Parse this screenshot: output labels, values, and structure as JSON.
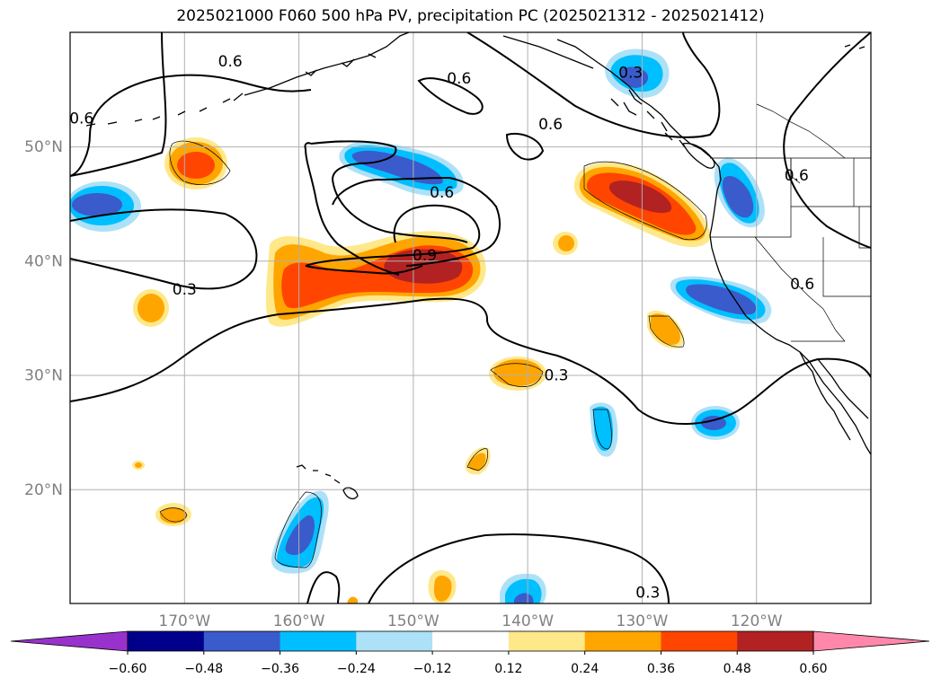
{
  "title": "2025021000 F060 500 hPa PV, precipitation PC (2025021312 - 2025021412)",
  "chart_data": {
    "type": "heatmap",
    "title": "2025021000 F060 500 hPa PV, precipitation PC (2025021312 - 2025021412)",
    "projection": "PlateCarree",
    "lon_range": [
      -180,
      -110
    ],
    "lat_range": [
      10,
      60
    ],
    "grid": true,
    "x_ticks": [
      -170,
      -160,
      -150,
      -140,
      -130,
      -120
    ],
    "x_tick_labels": [
      "170°W",
      "160°W",
      "150°W",
      "140°W",
      "130°W",
      "120°W"
    ],
    "y_ticks": [
      20,
      30,
      40,
      50
    ],
    "y_tick_labels": [
      "20°N",
      "30°N",
      "40°N",
      "50°N"
    ],
    "colorbar": {
      "levels": [
        -0.6,
        -0.48,
        -0.36,
        -0.24,
        -0.12,
        0.12,
        0.24,
        0.36,
        0.48,
        0.6
      ],
      "labels": [
        "−0.60",
        "−0.48",
        "−0.36",
        "−0.24",
        "−0.12",
        "0.12",
        "0.24",
        "0.36",
        "0.48",
        "0.60"
      ],
      "colors": [
        "#9932CC",
        "#00008B",
        "#3A5BCB",
        "#00BFFF",
        "#ADE1F8",
        "#FFFFFF",
        "#FFE88A",
        "#FFA500",
        "#FF4500",
        "#B22222",
        "#FF88AA"
      ],
      "extend": "both"
    },
    "contour_levels": [
      0.3,
      0.6,
      0.9
    ],
    "contour_labels": [
      {
        "text": "0.6",
        "lon": -179,
        "lat": 52.5
      },
      {
        "text": "0.6",
        "lon": -166,
        "lat": 57.5
      },
      {
        "text": "0.6",
        "lon": -146,
        "lat": 56
      },
      {
        "text": "0.3",
        "lon": -131,
        "lat": 56.5
      },
      {
        "text": "0.6",
        "lon": -138,
        "lat": 52
      },
      {
        "text": "0.6",
        "lon": -147.5,
        "lat": 46
      },
      {
        "text": "0.9",
        "lon": -149,
        "lat": 40.5
      },
      {
        "text": "0.3",
        "lon": -170,
        "lat": 37.5
      },
      {
        "text": "0.3",
        "lon": -137.5,
        "lat": 30
      },
      {
        "text": "0.3",
        "lon": -129.5,
        "lat": 11
      },
      {
        "text": "0.6",
        "lon": -116.5,
        "lat": 47.5
      },
      {
        "text": "0.6",
        "lon": -116,
        "lat": 38
      }
    ],
    "precip_areas": [
      {
        "lon": -174,
        "lat": 44.5,
        "level": -0.36
      },
      {
        "lon": -169,
        "lat": 48.6,
        "level": 0.36
      },
      {
        "lon": -151.5,
        "lat": 48.2,
        "level": -0.36
      },
      {
        "lon": -155,
        "lat": 38.5,
        "level": 0.36
      },
      {
        "lon": -149,
        "lat": 39.5,
        "level": 0.48
      },
      {
        "lon": -129.5,
        "lat": 45.3,
        "level": 0.48
      },
      {
        "lon": -122,
        "lat": 45,
        "level": -0.36
      },
      {
        "lon": -129,
        "lat": 56.5,
        "level": -0.36
      },
      {
        "lon": -122.5,
        "lat": 37,
        "level": -0.36
      },
      {
        "lon": -170.5,
        "lat": 35.8,
        "level": 0.24
      },
      {
        "lon": -140.5,
        "lat": 30.2,
        "level": 0.24
      },
      {
        "lon": -140,
        "lat": 41.7,
        "level": 0.24
      },
      {
        "lon": -128.5,
        "lat": 34.6,
        "level": 0.24
      },
      {
        "lon": -133,
        "lat": 25.5,
        "level": -0.24
      },
      {
        "lon": -123.8,
        "lat": 26,
        "level": -0.36
      },
      {
        "lon": -158,
        "lat": 16.5,
        "level": -0.36
      },
      {
        "lon": -143.5,
        "lat": 22.5,
        "level": 0.24
      },
      {
        "lon": -169,
        "lat": 17.8,
        "level": 0.24
      },
      {
        "lon": -174,
        "lat": 22,
        "level": 0.24
      },
      {
        "lon": -147,
        "lat": 11.5,
        "level": 0.24
      },
      {
        "lon": -139.5,
        "lat": 11.5,
        "level": -0.36
      }
    ]
  }
}
